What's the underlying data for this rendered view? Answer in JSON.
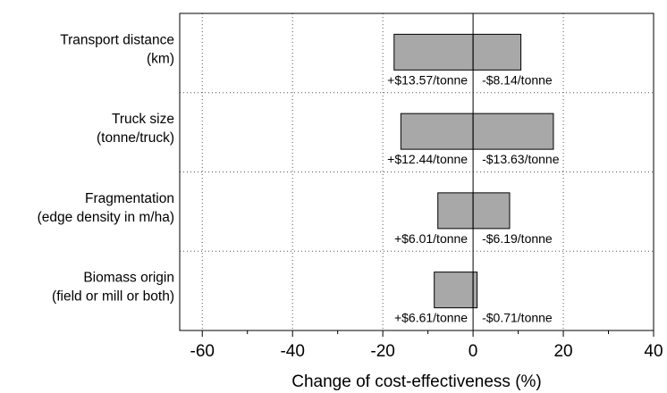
{
  "chart_data": {
    "type": "bar",
    "orientation": "horizontal",
    "title": "",
    "xlabel": "Change of cost-effectiveness (%)",
    "ylabel": "",
    "xlim": [
      -65,
      40
    ],
    "x_ticks": [
      -60,
      -40,
      -20,
      0,
      20,
      40
    ],
    "grid": true,
    "categories": [
      {
        "label_lines": [
          "Transport distance",
          "(km)"
        ],
        "low": -17.5,
        "high": 10.6,
        "left_label": "+$13.57/tonne",
        "right_label": "-$8.14/tonne"
      },
      {
        "label_lines": [
          "Truck size",
          "(tonne/truck)"
        ],
        "low": -16.0,
        "high": 17.8,
        "left_label": "+$12.44/tonne",
        "right_label": "-$13.63/tonne"
      },
      {
        "label_lines": [
          "Fragmentation",
          "(edge density in m/ha)"
        ],
        "low": -7.8,
        "high": 8.1,
        "left_label": "+$6.01/tonne",
        "right_label": "-$6.19/tonne"
      },
      {
        "label_lines": [
          "Biomass origin",
          "(field or mill or both)"
        ],
        "low": -8.6,
        "high": 0.9,
        "left_label": "+$6.61/tonne",
        "right_label": "-$0.71/tonne"
      }
    ]
  }
}
